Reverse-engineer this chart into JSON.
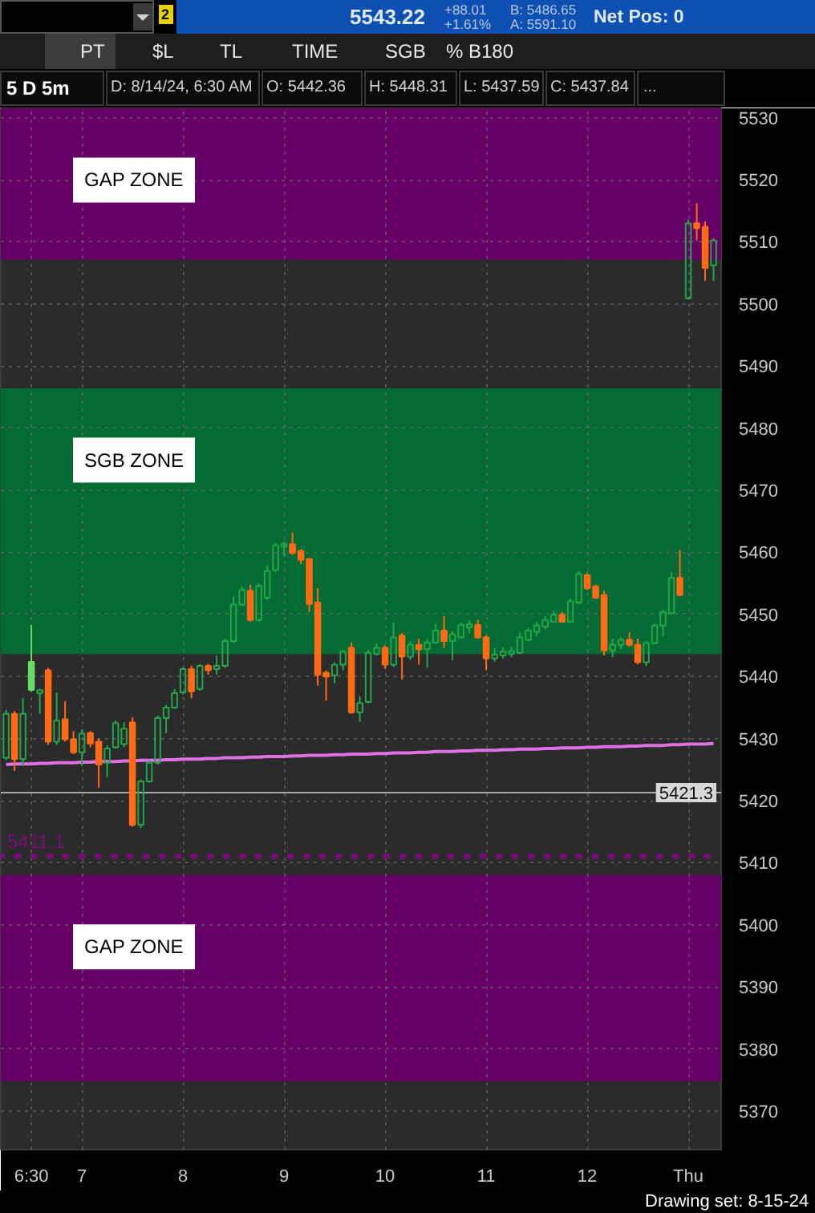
{
  "chart_data": {
    "type": "candlestick",
    "title": "5 D 5m",
    "annotations": [
      "2",
      "5543.22",
      "+88.01",
      "+1.61%",
      "B: 5486.65",
      "A: 5591.10",
      "Net Pos: 0",
      "PT",
      "$L",
      "TL",
      "TIME",
      "SGB",
      "% B180",
      "D: 8/14/24, 6:30 AM",
      "O: 5442.36",
      "H: 5448.31",
      "L: 5437.59",
      "C: 5437.84",
      "...",
      "Drawing set: 8-15-24"
    ],
    "categories": [
      null,
      null,
      null,
      "6:30",
      null,
      null,
      null,
      null,
      null,
      "7",
      null,
      null,
      null,
      null,
      null,
      null,
      null,
      null,
      null,
      null,
      null,
      "8",
      null,
      null,
      null,
      null,
      null,
      null,
      null,
      null,
      null,
      null,
      null,
      "9",
      null,
      null,
      null,
      null,
      null,
      null,
      null,
      null,
      null,
      null,
      null,
      "10",
      null,
      null,
      null,
      null,
      null,
      null,
      null,
      null,
      null,
      null,
      null,
      "11",
      null,
      null,
      null,
      null,
      null,
      null,
      null,
      null,
      null,
      null,
      null,
      "12",
      null,
      null,
      null,
      null,
      null,
      null,
      null,
      null,
      null,
      null,
      null,
      "Thu",
      null,
      null,
      null
    ],
    "ohlc": [
      [
        5426.9,
        5434.6,
        5426.5,
        5434.0
      ],
      [
        5434.0,
        5434.4,
        5424.8,
        5426.7
      ],
      [
        5426.7,
        5436.5,
        5425.6,
        5434.0
      ],
      [
        5442.36,
        5448.31,
        5437.59,
        5437.84
      ],
      [
        5437.3,
        5438.0,
        5434.0,
        5437.8
      ],
      [
        5441.0,
        5441.4,
        5429.0,
        5429.5
      ],
      [
        5429.5,
        5437.4,
        5429.0,
        5432.9
      ],
      [
        5433.1,
        5436.0,
        5429.5,
        5429.9
      ],
      [
        5429.9,
        5431.2,
        5427.5,
        5427.8
      ],
      [
        5427.8,
        5431.4,
        5425.6,
        5430.8
      ],
      [
        5430.9,
        5431.2,
        5428.6,
        5429.2
      ],
      [
        5429.5,
        5430.0,
        5422.1,
        5425.8
      ],
      [
        5426.1,
        5428.9,
        5423.8,
        5428.4
      ],
      [
        5428.6,
        5432.9,
        5428.4,
        5432.5
      ],
      [
        5429.1,
        5432.6,
        5428.6,
        5431.6
      ],
      [
        5432.6,
        5433.4,
        5415.8,
        5416.1
      ],
      [
        5416.1,
        5423.4,
        5415.6,
        5423.1
      ],
      [
        5423.1,
        5426.5,
        5422.9,
        5426.1
      ],
      [
        5426.1,
        5433.7,
        5425.8,
        5433.3
      ],
      [
        5433.3,
        5435.4,
        5430.9,
        5435.0
      ],
      [
        5435.0,
        5438.0,
        5434.8,
        5437.3
      ],
      [
        5437.4,
        5441.4,
        5437.1,
        5441.2
      ],
      [
        5441.2,
        5441.7,
        5436.5,
        5437.6
      ],
      [
        5438.0,
        5442.0,
        5437.7,
        5441.7
      ],
      [
        5441.7,
        5442.0,
        5440.3,
        5441.0
      ],
      [
        5441.2,
        5443.4,
        5440.3,
        5441.7
      ],
      [
        5441.7,
        5446.1,
        5441.4,
        5445.7
      ],
      [
        5445.7,
        5452.9,
        5445.4,
        5451.6
      ],
      [
        5451.6,
        5454.5,
        5451.4,
        5453.9
      ],
      [
        5453.8,
        5454.8,
        5448.8,
        5449.1
      ],
      [
        5449.1,
        5455.0,
        5448.8,
        5454.6
      ],
      [
        5452.7,
        5457.9,
        5452.3,
        5457.0
      ],
      [
        5457.1,
        5461.5,
        5456.8,
        5461.1
      ],
      [
        5460.9,
        5461.7,
        5459.4,
        5461.3
      ],
      [
        5461.3,
        5463.2,
        5459.6,
        5459.9
      ],
      [
        5460.2,
        5460.5,
        5458.1,
        5458.8
      ],
      [
        5458.9,
        5459.1,
        5450.4,
        5451.7
      ],
      [
        5451.9,
        5454.2,
        5438.5,
        5440.3
      ],
      [
        5440.6,
        5441.0,
        5436.1,
        5440.0
      ],
      [
        5440.2,
        5442.3,
        5438.9,
        5441.9
      ],
      [
        5441.9,
        5444.3,
        5441.0,
        5444.0
      ],
      [
        5444.6,
        5445.5,
        5434.0,
        5434.2
      ],
      [
        5434.2,
        5436.8,
        5432.7,
        5435.7
      ],
      [
        5435.9,
        5444.3,
        5435.7,
        5443.8
      ],
      [
        5443.6,
        5445.3,
        5443.4,
        5444.6
      ],
      [
        5444.6,
        5445.0,
        5441.2,
        5441.9
      ],
      [
        5441.9,
        5448.7,
        5441.5,
        5446.3
      ],
      [
        5446.6,
        5447.0,
        5439.5,
        5443.2
      ],
      [
        5443.2,
        5445.7,
        5442.7,
        5445.1
      ],
      [
        5445.1,
        5446.1,
        5441.9,
        5444.4
      ],
      [
        5444.4,
        5446.0,
        5441.4,
        5445.5
      ],
      [
        5445.5,
        5448.5,
        5445.3,
        5447.4
      ],
      [
        5447.4,
        5449.7,
        5444.6,
        5445.7
      ],
      [
        5445.7,
        5447.3,
        5442.6,
        5446.8
      ],
      [
        5446.3,
        5448.7,
        5446.1,
        5448.3
      ],
      [
        5447.9,
        5449.1,
        5447.0,
        5448.4
      ],
      [
        5448.3,
        5449.1,
        5446.1,
        5446.3
      ],
      [
        5446.3,
        5446.6,
        5441.0,
        5442.9
      ],
      [
        5442.9,
        5444.6,
        5442.4,
        5443.5
      ],
      [
        5443.4,
        5444.7,
        5442.9,
        5444.0
      ],
      [
        5443.6,
        5444.8,
        5443.1,
        5444.1
      ],
      [
        5443.8,
        5447.1,
        5443.6,
        5446.3
      ],
      [
        5445.9,
        5447.8,
        5445.7,
        5447.4
      ],
      [
        5447.2,
        5448.8,
        5446.5,
        5448.2
      ],
      [
        5448.0,
        5449.7,
        5447.6,
        5449.1
      ],
      [
        5448.8,
        5450.5,
        5448.7,
        5449.9
      ],
      [
        5449.9,
        5450.4,
        5448.7,
        5448.8
      ],
      [
        5448.8,
        5452.5,
        5448.7,
        5452.1
      ],
      [
        5451.9,
        5457.0,
        5451.6,
        5456.5
      ],
      [
        5456.3,
        5456.7,
        5453.9,
        5454.2
      ],
      [
        5454.5,
        5454.8,
        5452.5,
        5452.7
      ],
      [
        5453.1,
        5453.8,
        5443.4,
        5444.2
      ],
      [
        5444.2,
        5446.1,
        5443.1,
        5445.1
      ],
      [
        5445.1,
        5446.3,
        5444.4,
        5445.9
      ],
      [
        5445.9,
        5447.1,
        5444.8,
        5445.1
      ],
      [
        5445.1,
        5446.1,
        5442.0,
        5442.3
      ],
      [
        5442.3,
        5445.7,
        5441.7,
        5445.4
      ],
      [
        5445.4,
        5448.5,
        5445.2,
        5448.2
      ],
      [
        5448.2,
        5450.8,
        5446.5,
        5450.4
      ],
      [
        5450.2,
        5456.8,
        5450.0,
        5455.9
      ],
      [
        5455.9,
        5460.4,
        5452.9,
        5453.1
      ],
      [
        5500.9,
        5513.6,
        5500.7,
        5513.0
      ],
      [
        5513.0,
        5516.2,
        5510.2,
        5512.2
      ],
      [
        5512.4,
        5513.3,
        5503.7,
        5505.8
      ],
      [
        5506.2,
        5510.6,
        5503.7,
        5510.2
      ]
    ],
    "colors": [
      "#22a84a",
      "#ff6a14",
      "#22a84a",
      "#66dd66",
      "#22a84a",
      "#ff6a14",
      "#22a84a",
      "#ff6a14",
      "#ff6a14",
      "#22a84a",
      "#ff6a14",
      "#ff6a14",
      "#22a84a",
      "#22a84a",
      "#22a84a",
      "#ff6a14",
      "#22a84a",
      "#22a84a",
      "#22a84a",
      "#22a84a",
      "#22a84a",
      "#22a84a",
      "#ff6a14",
      "#22a84a",
      "#ff6a14",
      "#22a84a",
      "#22a84a",
      "#22a84a",
      "#22a84a",
      "#ff6a14",
      "#22a84a",
      "#22a84a",
      "#22a84a",
      "#22a84a",
      "#ff6a14",
      "#ff6a14",
      "#ff6a14",
      "#ff6a14",
      "#ff6a14",
      "#22a84a",
      "#22a84a",
      "#ff6a14",
      "#22a84a",
      "#22a84a",
      "#22a84a",
      "#ff6a14",
      "#22a84a",
      "#ff6a14",
      "#22a84a",
      "#ff6a14",
      "#22a84a",
      "#22a84a",
      "#ff6a14",
      "#22a84a",
      "#22a84a",
      "#22a84a",
      "#ff6a14",
      "#ff6a14",
      "#22a84a",
      "#22a84a",
      "#22a84a",
      "#22a84a",
      "#22a84a",
      "#22a84a",
      "#22a84a",
      "#22a84a",
      "#ff6a14",
      "#22a84a",
      "#22a84a",
      "#ff6a14",
      "#ff6a14",
      "#ff6a14",
      "#22a84a",
      "#22a84a",
      "#ff6a14",
      "#ff6a14",
      "#22a84a",
      "#22a84a",
      "#22a84a",
      "#22a84a",
      "#ff6a14",
      "#22a84a",
      "#ff6a14",
      "#ff6a14",
      "#22a84a"
    ],
    "series": [
      {
        "type": "line",
        "color": "#e070e6",
        "values": [
          5425.8,
          5425.9,
          5425.9,
          5425.9,
          5426.0,
          5426.0,
          5426.1,
          5426.1,
          5426.1,
          5426.2,
          5426.2,
          5426.3,
          5426.3,
          5426.3,
          5426.4,
          5426.4,
          5426.5,
          5426.5,
          5426.5,
          5426.6,
          5426.6,
          5426.7,
          5426.7,
          5426.7,
          5426.8,
          5426.8,
          5426.9,
          5426.9,
          5426.9,
          5427.0,
          5427.0,
          5427.1,
          5427.1,
          5427.1,
          5427.2,
          5427.2,
          5427.3,
          5427.3,
          5427.3,
          5427.4,
          5427.4,
          5427.5,
          5427.5,
          5427.5,
          5427.6,
          5427.6,
          5427.7,
          5427.7,
          5427.7,
          5427.8,
          5427.8,
          5427.9,
          5427.9,
          5427.9,
          5428.0,
          5428.0,
          5428.1,
          5428.1,
          5428.1,
          5428.2,
          5428.2,
          5428.3,
          5428.3,
          5428.3,
          5428.4,
          5428.4,
          5428.5,
          5428.5,
          5428.5,
          5428.6,
          5428.6,
          5428.7,
          5428.7,
          5428.7,
          5428.8,
          5428.8,
          5428.9,
          5428.9,
          5428.9,
          5429.0,
          5429.0,
          5429.1,
          5429.1,
          5429.1,
          5429.2
        ]
      }
    ],
    "ylim": [
      5363.8,
      5531.5
    ],
    "yticks": [
      5370,
      5380,
      5390,
      5400,
      5410,
      5420,
      5430,
      5440,
      5450,
      5460,
      5470,
      5480,
      5490,
      5500,
      5510,
      5520,
      5530
    ],
    "bands": [
      {
        "axis": "y",
        "from": 5507.1,
        "to": 5531.5,
        "label": "GAP ZONE",
        "color": "#660066"
      },
      {
        "axis": "y",
        "from": 5443.6,
        "to": 5486.4,
        "label": "SGB ZONE",
        "color": "#046b34"
      },
      {
        "axis": "y",
        "from": 5374.8,
        "to": 5408.0,
        "label": "GAP ZONE",
        "color": "#660066"
      }
    ],
    "ref_lines": [
      {
        "axis": "y",
        "value": 5421.3,
        "label": "5421.3",
        "color": "#a8a8a8"
      },
      {
        "axis": "y",
        "value": 5411.1,
        "label": "5411.1",
        "color": "#7a0a7a",
        "line_style": "dotted"
      }
    ],
    "grid": true
  }
}
